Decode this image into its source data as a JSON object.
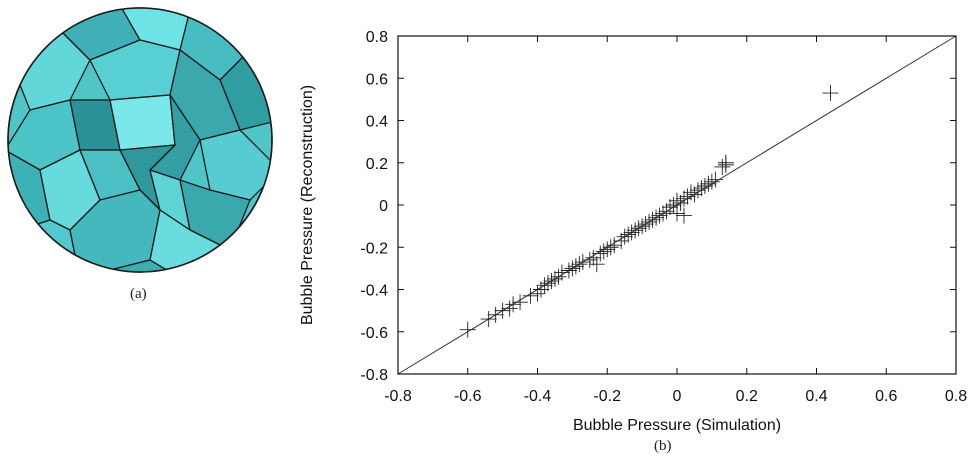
{
  "panel_labels": {
    "a": "(a)",
    "b": "(b)"
  },
  "foam_image": {
    "description_icon": "foam-bubble-rendering",
    "fill_color": "#5ed6d6",
    "edge_color": "#1a1a1a"
  },
  "chart_data": {
    "type": "scatter",
    "xlabel": "Bubble Pressure (Simulation)",
    "ylabel": "Bubble Pressure (Reconstruction)",
    "xlim": [
      -0.8,
      0.8
    ],
    "ylim": [
      -0.8,
      0.8
    ],
    "x_ticks": [
      "-0.8",
      "-0.6",
      "-0.4",
      "-0.2",
      "0",
      "0.2",
      "0.4",
      "0.6",
      "0.8"
    ],
    "y_ticks": [
      "-0.8",
      "-0.6",
      "-0.4",
      "-0.2",
      "0",
      "0.2",
      "0.4",
      "0.6",
      "0.8"
    ],
    "marker": "+",
    "grid": false,
    "reference_line": {
      "x": [
        -0.8,
        0.8
      ],
      "y": [
        -0.8,
        0.8
      ]
    },
    "points": [
      [
        -0.6,
        -0.59
      ],
      [
        -0.54,
        -0.54
      ],
      [
        -0.52,
        -0.52
      ],
      [
        -0.5,
        -0.5
      ],
      [
        -0.48,
        -0.49
      ],
      [
        -0.47,
        -0.47
      ],
      [
        -0.45,
        -0.46
      ],
      [
        -0.42,
        -0.43
      ],
      [
        -0.4,
        -0.42
      ],
      [
        -0.39,
        -0.4
      ],
      [
        -0.38,
        -0.38
      ],
      [
        -0.37,
        -0.37
      ],
      [
        -0.36,
        -0.36
      ],
      [
        -0.35,
        -0.35
      ],
      [
        -0.34,
        -0.34
      ],
      [
        -0.33,
        -0.32
      ],
      [
        -0.31,
        -0.31
      ],
      [
        -0.3,
        -0.3
      ],
      [
        -0.29,
        -0.29
      ],
      [
        -0.28,
        -0.28
      ],
      [
        -0.27,
        -0.27
      ],
      [
        -0.25,
        -0.26
      ],
      [
        -0.24,
        -0.25
      ],
      [
        -0.23,
        -0.28
      ],
      [
        -0.22,
        -0.23
      ],
      [
        -0.21,
        -0.22
      ],
      [
        -0.2,
        -0.21
      ],
      [
        -0.19,
        -0.2
      ],
      [
        -0.18,
        -0.19
      ],
      [
        -0.16,
        -0.17
      ],
      [
        -0.15,
        -0.15
      ],
      [
        -0.14,
        -0.14
      ],
      [
        -0.13,
        -0.13
      ],
      [
        -0.12,
        -0.12
      ],
      [
        -0.11,
        -0.11
      ],
      [
        -0.1,
        -0.1
      ],
      [
        -0.09,
        -0.09
      ],
      [
        -0.08,
        -0.08
      ],
      [
        -0.07,
        -0.07
      ],
      [
        -0.06,
        -0.06
      ],
      [
        -0.05,
        -0.05
      ],
      [
        -0.04,
        -0.04
      ],
      [
        -0.03,
        -0.03
      ],
      [
        -0.02,
        -0.01
      ],
      [
        -0.01,
        0.0
      ],
      [
        0.0,
        0.02
      ],
      [
        0.01,
        0.01
      ],
      [
        0.02,
        0.03
      ],
      [
        0.0,
        -0.04
      ],
      [
        0.02,
        -0.05
      ],
      [
        0.03,
        0.04
      ],
      [
        0.04,
        0.06
      ],
      [
        0.05,
        0.05
      ],
      [
        0.06,
        0.07
      ],
      [
        0.07,
        0.08
      ],
      [
        0.08,
        0.09
      ],
      [
        0.09,
        0.1
      ],
      [
        0.1,
        0.11
      ],
      [
        0.11,
        0.12
      ],
      [
        0.13,
        0.18
      ],
      [
        0.14,
        0.19
      ],
      [
        0.14,
        0.2
      ],
      [
        0.44,
        0.53
      ]
    ]
  }
}
